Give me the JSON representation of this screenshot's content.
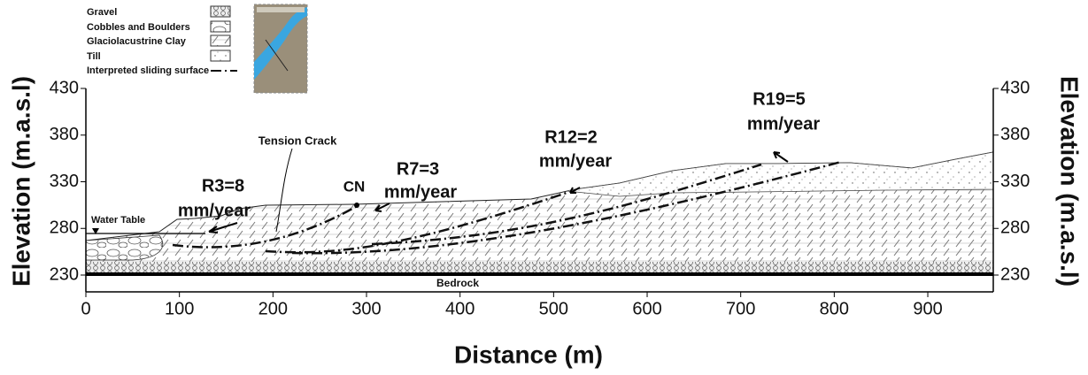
{
  "legend": [
    "Gravel",
    "Cobbles and Boulders",
    "Glaciolacustrine Clay",
    "Till",
    "Interpreted sliding surface"
  ],
  "annotations": {
    "tension_crack": "Tension Crack",
    "r3": "R3=8",
    "r3_unit": "mm/year",
    "cn": "CN",
    "r7": "R7=3",
    "r7_unit": "mm/year",
    "r12": "R12=2",
    "r12_unit": "mm/year",
    "r19": "R19=5",
    "r19_unit": "mm/year",
    "water_table": "Water Table",
    "bedrock": "Bedrock"
  },
  "axes": {
    "x_label": "Distance (m)",
    "y_label": "Elevation (m.a.s.l)",
    "y2_label": "Elevation (m.a.s.l)",
    "xlim": [
      0,
      970
    ],
    "ylim": [
      212,
      430
    ],
    "xticks": [
      0,
      100,
      200,
      300,
      400,
      500,
      600,
      700,
      800,
      900
    ],
    "yticks": [
      230,
      280,
      330,
      380,
      430
    ]
  }
}
